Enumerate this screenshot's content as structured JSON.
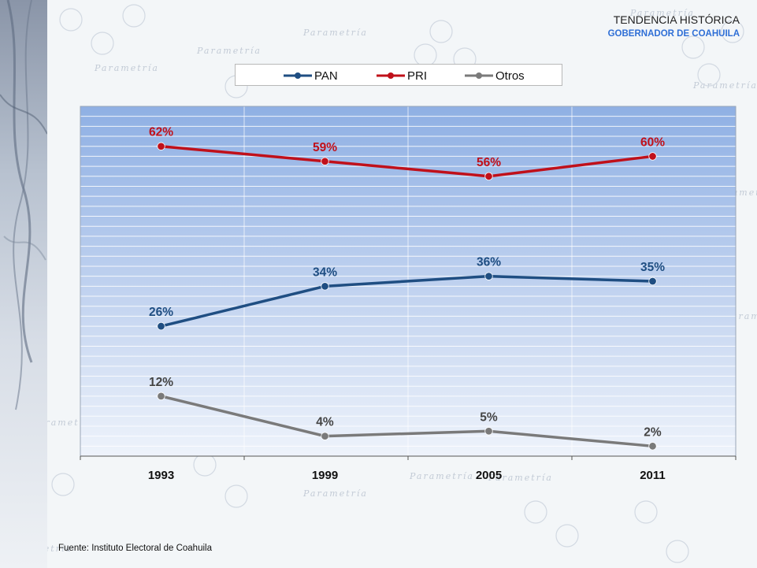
{
  "header": {
    "title": "TENDENCIA HISTÓRICA",
    "subtitle": "GOBERNADOR DE COAHUILA"
  },
  "legend": {
    "items": [
      {
        "label": "PAN",
        "color": "#1f4e82"
      },
      {
        "label": "PRI",
        "color": "#c0101a"
      },
      {
        "label": "Otros",
        "color": "#7a7a7a"
      }
    ]
  },
  "source_note": "Fuente: Instituto Electoral de Coahuila",
  "background": {
    "watermark_word": "Parametría"
  },
  "chart_data": {
    "type": "line",
    "categories": [
      "1993",
      "1999",
      "2005",
      "2011"
    ],
    "series": [
      {
        "name": "PAN",
        "values": [
          26,
          34,
          36,
          35
        ],
        "labels": [
          "26%",
          "34%",
          "36%",
          "35%"
        ],
        "color": "#1f4e82"
      },
      {
        "name": "PRI",
        "values": [
          62,
          59,
          56,
          60
        ],
        "labels": [
          "62%",
          "59%",
          "56%",
          "60%"
        ],
        "color": "#c0101a"
      },
      {
        "name": "Otros",
        "values": [
          12,
          4,
          5,
          2
        ],
        "labels": [
          "12%",
          "4%",
          "5%",
          "2%"
        ],
        "color": "#7a7a7a"
      }
    ],
    "ylim": [
      0,
      70
    ],
    "grid": true,
    "legend_position": "top"
  }
}
